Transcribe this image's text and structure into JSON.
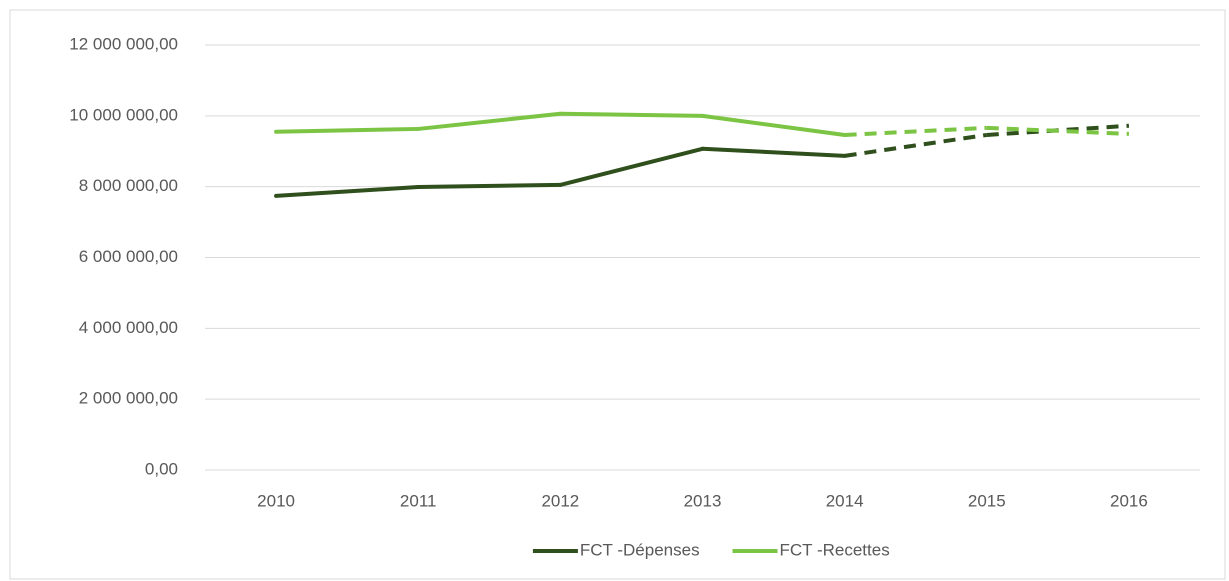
{
  "chart_data": {
    "type": "line",
    "categories": [
      "2010",
      "2011",
      "2012",
      "2013",
      "2014",
      "2015",
      "2016"
    ],
    "series": [
      {
        "name": "FCT -Dépenses",
        "color": "#2f4f1c",
        "values": [
          7740000,
          7990000,
          8050000,
          9070000,
          8870000,
          9460000,
          9720000
        ]
      },
      {
        "name": "FCT -Recettes",
        "color": "#7cc544",
        "values": [
          9550000,
          9630000,
          10060000,
          10000000,
          9460000,
          9660000,
          9490000
        ]
      }
    ],
    "dashed_from": 4,
    "ylim": [
      0,
      12000000
    ],
    "yticks": [
      {
        "value": 0,
        "label": "0,00"
      },
      {
        "value": 2000000,
        "label": "2 000 000,00"
      },
      {
        "value": 4000000,
        "label": "4 000 000,00"
      },
      {
        "value": 6000000,
        "label": "6 000 000,00"
      },
      {
        "value": 8000000,
        "label": "8 000 000,00"
      },
      {
        "value": 10000000,
        "label": "10 000 000,00"
      },
      {
        "value": 12000000,
        "label": "12 000 000,00"
      }
    ],
    "grid": true,
    "legend": "bottom"
  }
}
